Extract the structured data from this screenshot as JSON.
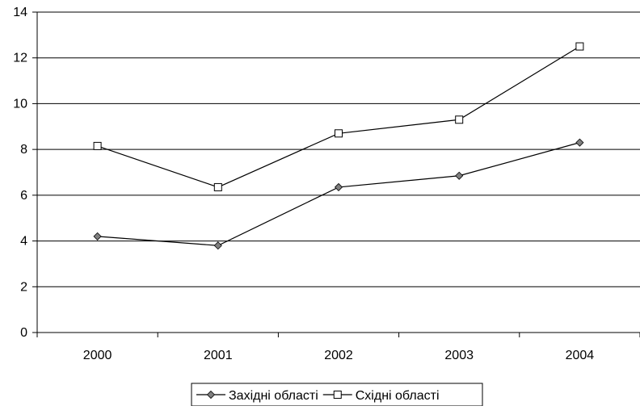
{
  "chart_data": {
    "type": "line",
    "categories": [
      "2000",
      "2001",
      "2002",
      "2003",
      "2004"
    ],
    "series": [
      {
        "name": "Західні області",
        "marker": "diamond",
        "color": "#000000",
        "marker_fill": "#7f7f7f",
        "values": [
          4.2,
          3.8,
          6.35,
          6.85,
          8.3
        ]
      },
      {
        "name": "Східні області",
        "marker": "square",
        "color": "#000000",
        "marker_fill": "#ffffff",
        "values": [
          8.15,
          6.35,
          8.7,
          9.3,
          12.5
        ]
      }
    ],
    "title": "",
    "xlabel": "",
    "ylabel": "",
    "ylim": [
      0,
      14
    ],
    "yticks": [
      "0",
      "2",
      "4",
      "6",
      "8",
      "10",
      "12",
      "14"
    ],
    "grid": "horizontal",
    "legend_position": "bottom-center"
  }
}
